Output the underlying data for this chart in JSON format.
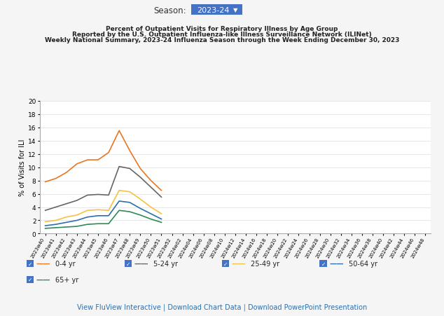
{
  "title_line1": "Percent of Outpatient Visits for Respiratory Illness by Age Group",
  "title_line2": "Reported by the U.S. Outpatient Influenza-like Illness Surveillance Network (ILINet)",
  "title_line3": "Weekly National Summary, 2023-24 Influenza Season through the Week Ending December 30, 2023",
  "season_label": "Season:",
  "season_value": "2023-24",
  "ylabel": "% of Visits for ILI",
  "ylim": [
    0,
    20
  ],
  "yticks": [
    0,
    2,
    4,
    6,
    8,
    10,
    12,
    14,
    16,
    18,
    20
  ],
  "weeks": [
    "2023w40",
    "2023w41",
    "2023w42",
    "2023w43",
    "2023w44",
    "2023w45",
    "2023w46",
    "2023w47",
    "2023w48",
    "2023w49",
    "2023w50",
    "2023w51",
    "2023w52",
    "2024w02",
    "2024w04",
    "2024w06",
    "2024w08",
    "2024w10",
    "2024w12",
    "2024w14",
    "2024w16",
    "2024w18",
    "2024w20",
    "2024w22",
    "2024w24",
    "2024w26",
    "2024w28",
    "2024w30",
    "2024w32",
    "2024w34",
    "2024w36",
    "2024w38",
    "2024w40",
    "2024w42",
    "2024w44",
    "2024w46",
    "2024w48"
  ],
  "series": {
    "0-4 yr": {
      "color": "#E87722",
      "linewidth": 1.2,
      "data": [
        7.8,
        8.3,
        9.2,
        10.5,
        11.1,
        11.1,
        12.2,
        15.5,
        12.5,
        9.8,
        8.0,
        6.5,
        null,
        null,
        null,
        null,
        null,
        null,
        null,
        null,
        null,
        null,
        null,
        null,
        null,
        null,
        null,
        null,
        null,
        null,
        null,
        null,
        null,
        null,
        null,
        null,
        null
      ]
    },
    "5-24 yr": {
      "color": "#666666",
      "linewidth": 1.2,
      "data": [
        3.5,
        4.0,
        4.5,
        5.0,
        5.8,
        5.9,
        5.8,
        10.1,
        9.8,
        8.5,
        7.0,
        5.5,
        null,
        null,
        null,
        null,
        null,
        null,
        null,
        null,
        null,
        null,
        null,
        null,
        null,
        null,
        null,
        null,
        null,
        null,
        null,
        null,
        null,
        null,
        null,
        null,
        null
      ]
    },
    "25-49 yr": {
      "color": "#F5C242",
      "linewidth": 1.2,
      "data": [
        1.8,
        2.0,
        2.5,
        2.8,
        3.5,
        3.6,
        3.5,
        6.5,
        6.3,
        5.2,
        4.0,
        3.0,
        null,
        null,
        null,
        null,
        null,
        null,
        null,
        null,
        null,
        null,
        null,
        null,
        null,
        null,
        null,
        null,
        null,
        null,
        null,
        null,
        null,
        null,
        null,
        null,
        null
      ]
    },
    "50-64 yr": {
      "color": "#2C6FAC",
      "linewidth": 1.2,
      "data": [
        1.2,
        1.4,
        1.7,
        2.0,
        2.5,
        2.7,
        2.7,
        4.9,
        4.7,
        3.8,
        3.0,
        2.2,
        null,
        null,
        null,
        null,
        null,
        null,
        null,
        null,
        null,
        null,
        null,
        null,
        null,
        null,
        null,
        null,
        null,
        null,
        null,
        null,
        null,
        null,
        null,
        null,
        null
      ]
    },
    "65+ yr": {
      "color": "#2E8B57",
      "linewidth": 1.2,
      "data": [
        0.8,
        0.9,
        1.0,
        1.1,
        1.4,
        1.5,
        1.5,
        3.5,
        3.3,
        2.8,
        2.2,
        1.7,
        null,
        null,
        null,
        null,
        null,
        null,
        null,
        null,
        null,
        null,
        null,
        null,
        null,
        null,
        null,
        null,
        null,
        null,
        null,
        null,
        null,
        null,
        null,
        null,
        null
      ]
    }
  },
  "legend_entries": [
    "0-4 yr",
    "5-24 yr",
    "25-49 yr",
    "50-64 yr",
    "65+ yr"
  ],
  "footer_text": "View FluView Interactive | Download Chart Data | Download PowerPoint Presentation",
  "footer_color": "#2C6FAC",
  "background_color": "#f5f5f5",
  "plot_bg_color": "#ffffff",
  "title_fontsize": 6.5,
  "axis_label_fontsize": 7,
  "tick_fontsize": 6.5
}
